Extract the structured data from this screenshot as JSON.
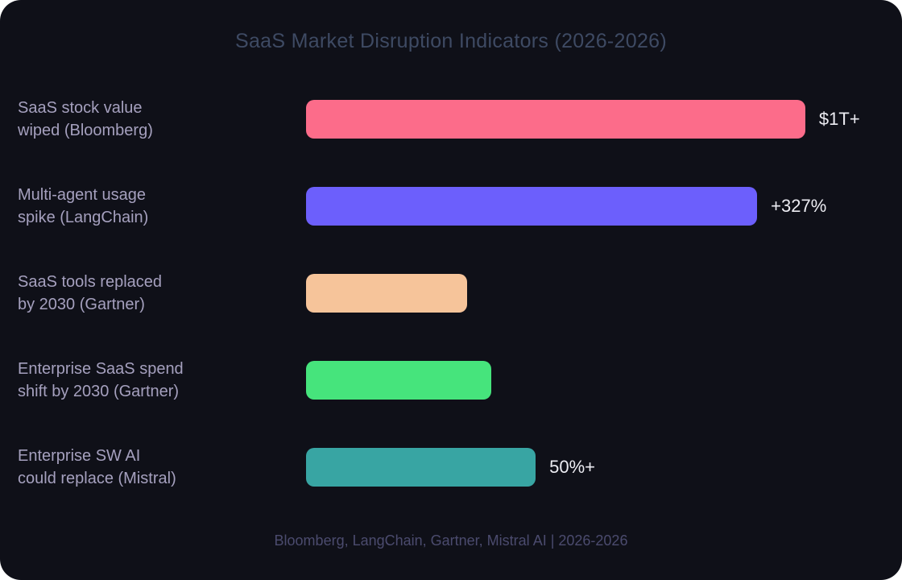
{
  "title": "SaaS Market Disruption Indicators (2026-2026)",
  "footer": "Bloomberg, LangChain, Gartner, Mistral AI | 2026-2026",
  "colors": {
    "page_bg": "#ffffff",
    "card_bg": "#0f1018",
    "title_text": "#3e4a63",
    "label_text": "#a5a0be",
    "value_text": "#ececf2",
    "footer_text": "#4b4b6e"
  },
  "chart_data": {
    "type": "bar",
    "orientation": "horizontal",
    "title": "SaaS Market Disruption Indicators (2026-2026)",
    "source_note": "Bloomberg, LangChain, Gartner, Mistral AI | 2026-2026",
    "legend": false,
    "grid": false,
    "axes_visible": false,
    "categories": [
      "SaaS stock value wiped (Bloomberg)",
      "Multi-agent usage spike (LangChain)",
      "SaaS tools replaced by 2030 (Gartner)",
      "Enterprise SaaS spend shift by 2030 (Gartner)",
      "Enterprise SW AI could replace (Mistral)"
    ],
    "rows": [
      {
        "label_line1": "SaaS stock value",
        "label_line2": "wiped (Bloomberg)",
        "value_label": "$1T+",
        "length_pct": 86.1,
        "color": "#fc6c8a"
      },
      {
        "label_line1": "Multi-agent usage",
        "label_line2": "spike (LangChain)",
        "value_label": "+327%",
        "length_pct": 77.8,
        "color": "#6c5ffc"
      },
      {
        "label_line1": "SaaS tools replaced",
        "label_line2": "by 2030 (Gartner)",
        "value_label": "",
        "length_pct": 27.8,
        "color": "#f6c49a"
      },
      {
        "label_line1": "Enterprise SaaS spend",
        "label_line2": "shift by 2030 (Gartner)",
        "value_label": "",
        "length_pct": 31.9,
        "color": "#46e47c"
      },
      {
        "label_line1": "Enterprise SW AI",
        "label_line2": "could replace (Mistral)",
        "value_label": "50%+",
        "length_pct": 39.6,
        "color": "#38a5a3"
      }
    ]
  }
}
